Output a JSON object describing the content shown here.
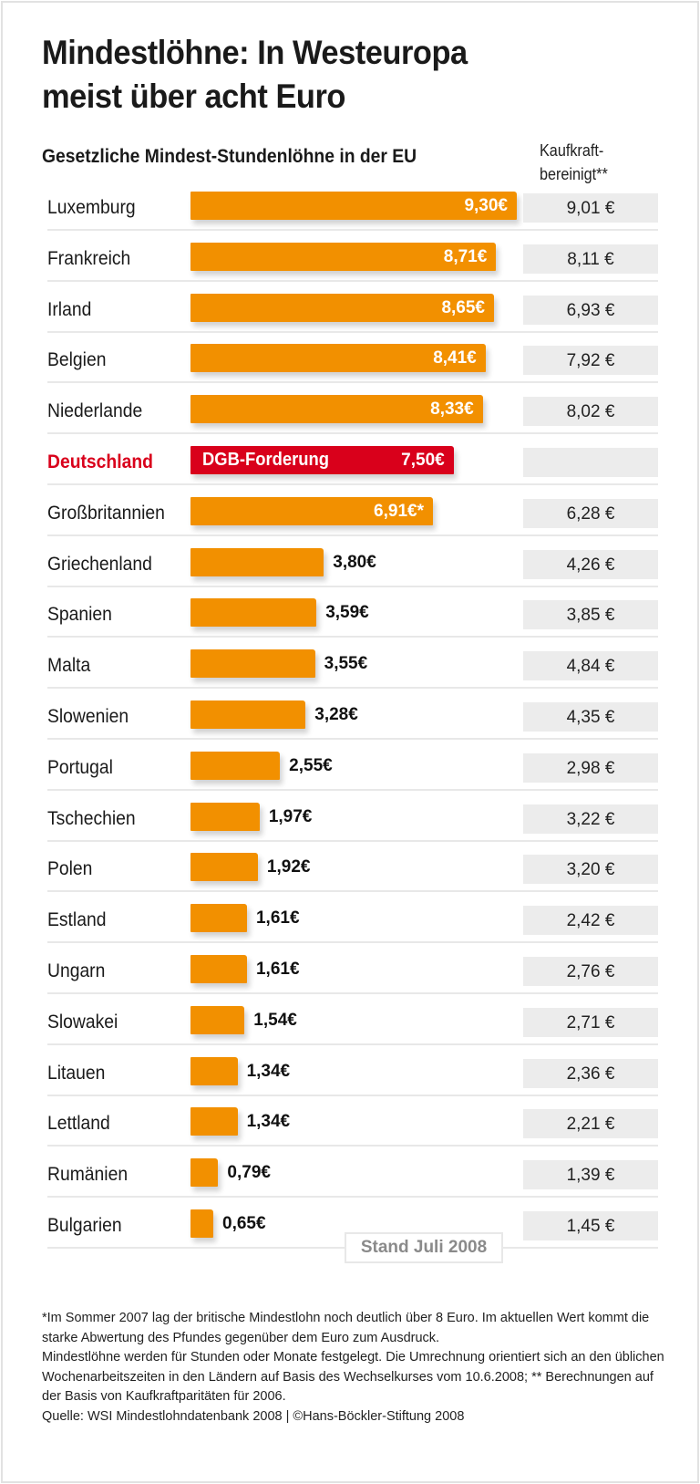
{
  "title_lines": [
    "Mindestlöhne: In Westeuropa",
    "meist über acht Euro"
  ],
  "subtitle": "Gesetzliche Mindest-Stundenlöhne in der EU",
  "ppp_header": [
    "Kaufkraft-",
    "bereinigt**"
  ],
  "colors": {
    "bar": "#f29000",
    "highlight": "#d9001b",
    "ppp_box": "#ececec"
  },
  "stand": "Stand Juli 2008",
  "chart_data": {
    "type": "bar",
    "orientation": "horizontal",
    "title": "Gesetzliche Mindest-Stundenlöhne in der EU",
    "unit": "€ per hour",
    "categories": [
      "Luxemburg",
      "Frankreich",
      "Irland",
      "Belgien",
      "Niederlande",
      "Deutschland",
      "Großbritannien",
      "Griechenland",
      "Spanien",
      "Malta",
      "Slowenien",
      "Portugal",
      "Tschechien",
      "Polen",
      "Estland",
      "Ungarn",
      "Slowakei",
      "Litauen",
      "Lettland",
      "Rumänien",
      "Bulgarien"
    ],
    "values": [
      9.3,
      8.71,
      8.65,
      8.41,
      8.33,
      7.5,
      6.91,
      3.8,
      3.59,
      3.55,
      3.28,
      2.55,
      1.97,
      1.92,
      1.61,
      1.61,
      1.54,
      1.34,
      1.34,
      0.79,
      0.65
    ],
    "value_labels": [
      "9,30€",
      "8,71€",
      "8,65€",
      "8,41€",
      "8,33€",
      "7,50€",
      "6,91€*",
      "3,80€",
      "3,59€",
      "3,55€",
      "3,28€",
      "2,55€",
      "1,97€",
      "1,92€",
      "1,61€",
      "1,61€",
      "1,54€",
      "1,34€",
      "1,34€",
      "0,79€",
      "0,65€"
    ],
    "highlight": {
      "category": "Deutschland",
      "bar_label": "DGB-Forderung"
    },
    "ppp_adjusted": [
      "9,01 €",
      "8,11 €",
      "6,93 €",
      "7,92 €",
      "8,02 €",
      "",
      "6,28 €",
      "4,26 €",
      "3,85 €",
      "4,84 €",
      "4,35 €",
      "2,98 €",
      "3,22 €",
      "3,20 €",
      "2,42 €",
      "2,76 €",
      "2,71 €",
      "2,36 €",
      "2,21 €",
      "1,39 €",
      "1,45 €"
    ],
    "grid": false
  },
  "footnotes": [
    "*Im Sommer 2007 lag der britische Mindestlohn noch deutlich über 8 Euro. Im aktuellen Wert kommt die starke Abwertung des Pfundes gegenüber dem Euro zum Ausdruck.",
    "Mindestlöhne werden für Stunden oder Monate festgelegt. Die Umrechnung orientiert sich an den üblichen Wochenarbeitszeiten in den Ländern auf Basis des Wechselkurses vom 10.6.2008; ** Berechnungen auf der Basis von Kaufkraftparitäten für 2006.",
    "Quelle: WSI Mindestlohndatenbank 2008 | ©Hans-Böckler-Stiftung 2008"
  ]
}
